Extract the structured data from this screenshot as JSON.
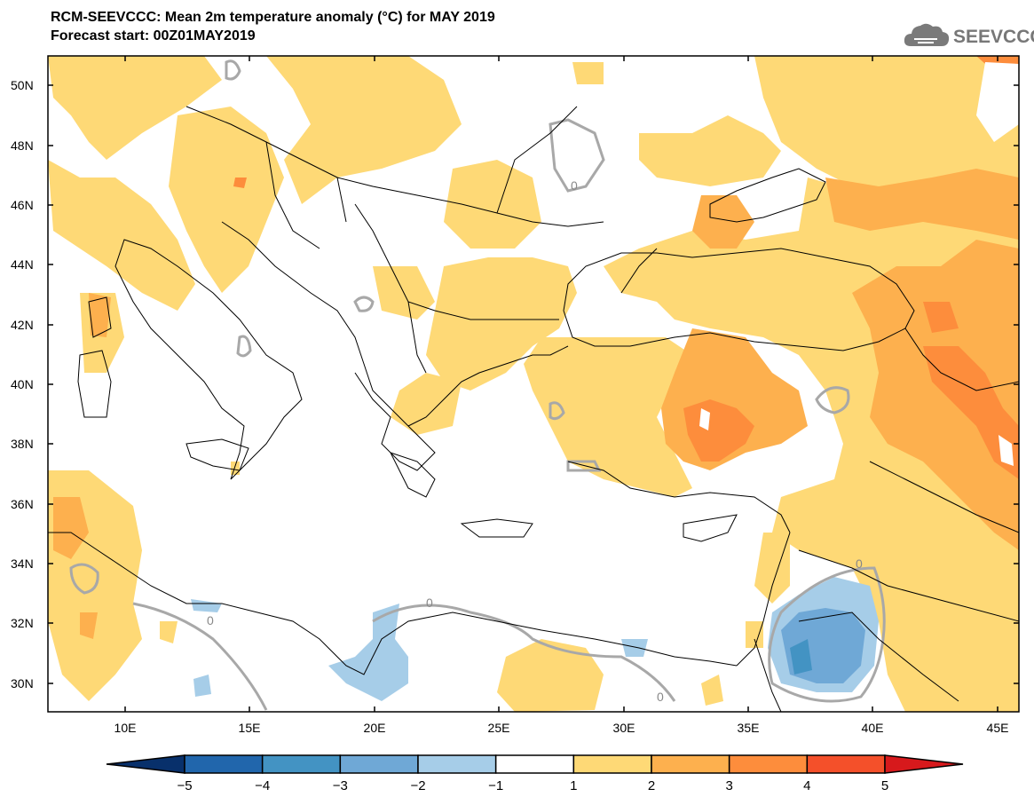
{
  "title_line1": "RCM-SEEVCCC: Mean 2m temperature anomaly (°C) for MAY 2019",
  "title_line2": "Forecast start: 00Z01MAY2019",
  "logo_text": "SEEVCCC",
  "logo_icon": "cloud-icon",
  "map": {
    "lon_labels": [
      "10E",
      "15E",
      "20E",
      "25E",
      "30E",
      "35E",
      "40E",
      "45E"
    ],
    "lat_labels": [
      "50N",
      "48N",
      "46N",
      "44N",
      "42N",
      "40N",
      "38N",
      "36N",
      "34N",
      "32N",
      "30N"
    ],
    "contour_label": "0"
  },
  "colorbar": {
    "ticks": [
      "−5",
      "−4",
      "−3",
      "−2",
      "−1",
      "1",
      "2",
      "3",
      "4",
      "5"
    ],
    "colors": [
      "#08306b",
      "#2166ac",
      "#4393c3",
      "#6fa8d6",
      "#a6cde8",
      "#ffffff",
      "#fed976",
      "#fdb04e",
      "#fd8d3c",
      "#f4502a",
      "#d7191c"
    ]
  }
}
